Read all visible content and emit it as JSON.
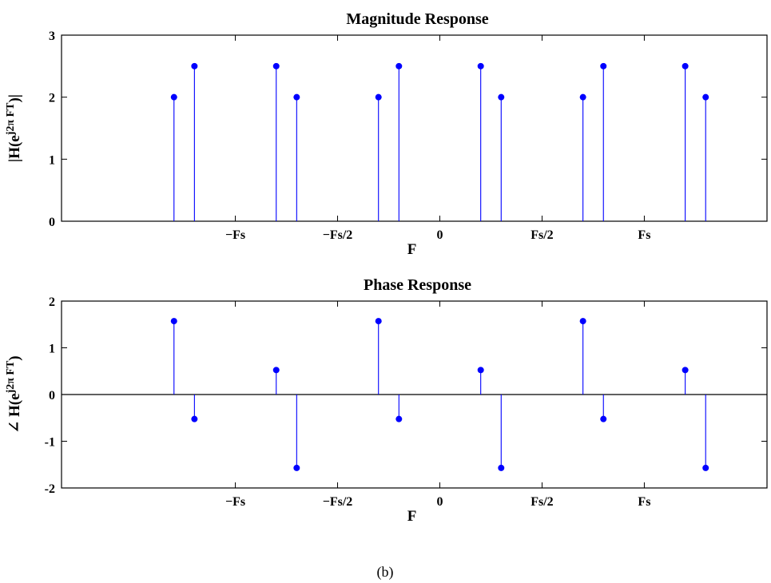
{
  "caption": "(b)",
  "chart_data": [
    {
      "type": "stem",
      "title": "Magnitude Response",
      "xlabel": "F",
      "ylabel_parts": {
        "pre": "|H(e",
        "sup": "j2π FT",
        "post": ")|"
      },
      "x_unit": "Fs",
      "xlim": [
        -1.85,
        1.6
      ],
      "ylim": [
        0,
        3
      ],
      "yticks": [
        0,
        1,
        2,
        3
      ],
      "xtick_values": [
        -1,
        -0.5,
        0,
        0.5,
        1
      ],
      "xticks": [
        "−Fs",
        "−Fs/2",
        "0",
        "Fs/2",
        "Fs"
      ],
      "grid": false,
      "color": "#0000ff",
      "x": [
        -1.3,
        -1.2,
        -0.8,
        -0.7,
        -0.3,
        -0.2,
        0.2,
        0.3,
        0.7,
        0.8,
        1.2,
        1.3
      ],
      "values": [
        2,
        2.5,
        2.5,
        2,
        2,
        2.5,
        2.5,
        2,
        2,
        2.5,
        2.5,
        2
      ]
    },
    {
      "type": "stem",
      "title": "Phase Response",
      "xlabel": "F",
      "ylabel_parts": {
        "pre": "∠ H(e",
        "sup": "j2π FT",
        "post": ")"
      },
      "x_unit": "Fs",
      "xlim": [
        -1.85,
        1.6
      ],
      "ylim": [
        -2,
        2
      ],
      "yticks": [
        -2,
        -1,
        0,
        1,
        2
      ],
      "xtick_values": [
        -1,
        -0.5,
        0,
        0.5,
        1
      ],
      "xticks": [
        "−Fs",
        "−Fs/2",
        "0",
        "Fs/2",
        "Fs"
      ],
      "grid": false,
      "color": "#0000ff",
      "x": [
        -1.3,
        -1.2,
        -0.8,
        -0.7,
        -0.3,
        -0.2,
        0.2,
        0.3,
        0.7,
        0.8,
        1.2,
        1.3
      ],
      "values": [
        1.571,
        -0.524,
        0.524,
        -1.571,
        1.571,
        -0.524,
        0.524,
        -1.571,
        1.571,
        -0.524,
        0.524,
        -1.571
      ]
    }
  ]
}
